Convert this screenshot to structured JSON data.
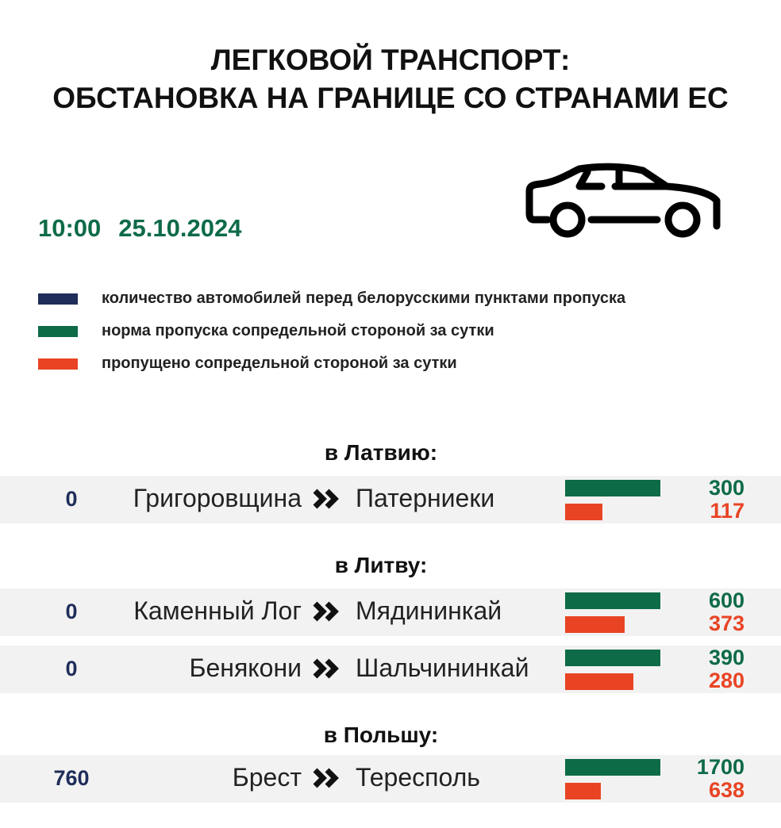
{
  "title": [
    "ЛЕГКОВОЙ ТРАНСПОРТ:",
    "ОБСТАНОВКА НА ГРАНИЦЕ СО СТРАНАМИ ЕС"
  ],
  "time": "10:00",
  "date": "25.10.2024",
  "colors": {
    "queue": "#1f2d5a",
    "norm": "#0e6b48",
    "passed": "#e84424"
  },
  "legend": [
    {
      "label": "количество автомобилей перед белорусскими пунктами пропуска",
      "color": "#1f2d5a"
    },
    {
      "label": "норма пропуска сопредельной стороной за сутки",
      "color": "#0e6b48"
    },
    {
      "label": "пропущено сопредельной стороной за сутки",
      "color": "#e84424"
    }
  ],
  "chart_data": {
    "type": "bar",
    "sections": [
      {
        "label": "в Латвию:",
        "rows": [
          {
            "queue": "0",
            "from": "Григоровщина",
            "to": "Патерниеки",
            "norm": 300,
            "passed": 117
          }
        ]
      },
      {
        "label": "в Литву:",
        "rows": [
          {
            "queue": "0",
            "from": "Каменный Лог",
            "to": "Мядининкай",
            "norm": 600,
            "passed": 373
          },
          {
            "queue": "0",
            "from": "Бенякони",
            "to": "Шальчининкай",
            "norm": 390,
            "passed": 280
          }
        ]
      },
      {
        "label": "в Польшу:",
        "rows": [
          {
            "queue": "760",
            "from": "Брест",
            "to": "Тересполь",
            "norm": 1700,
            "passed": 638
          }
        ]
      }
    ]
  }
}
